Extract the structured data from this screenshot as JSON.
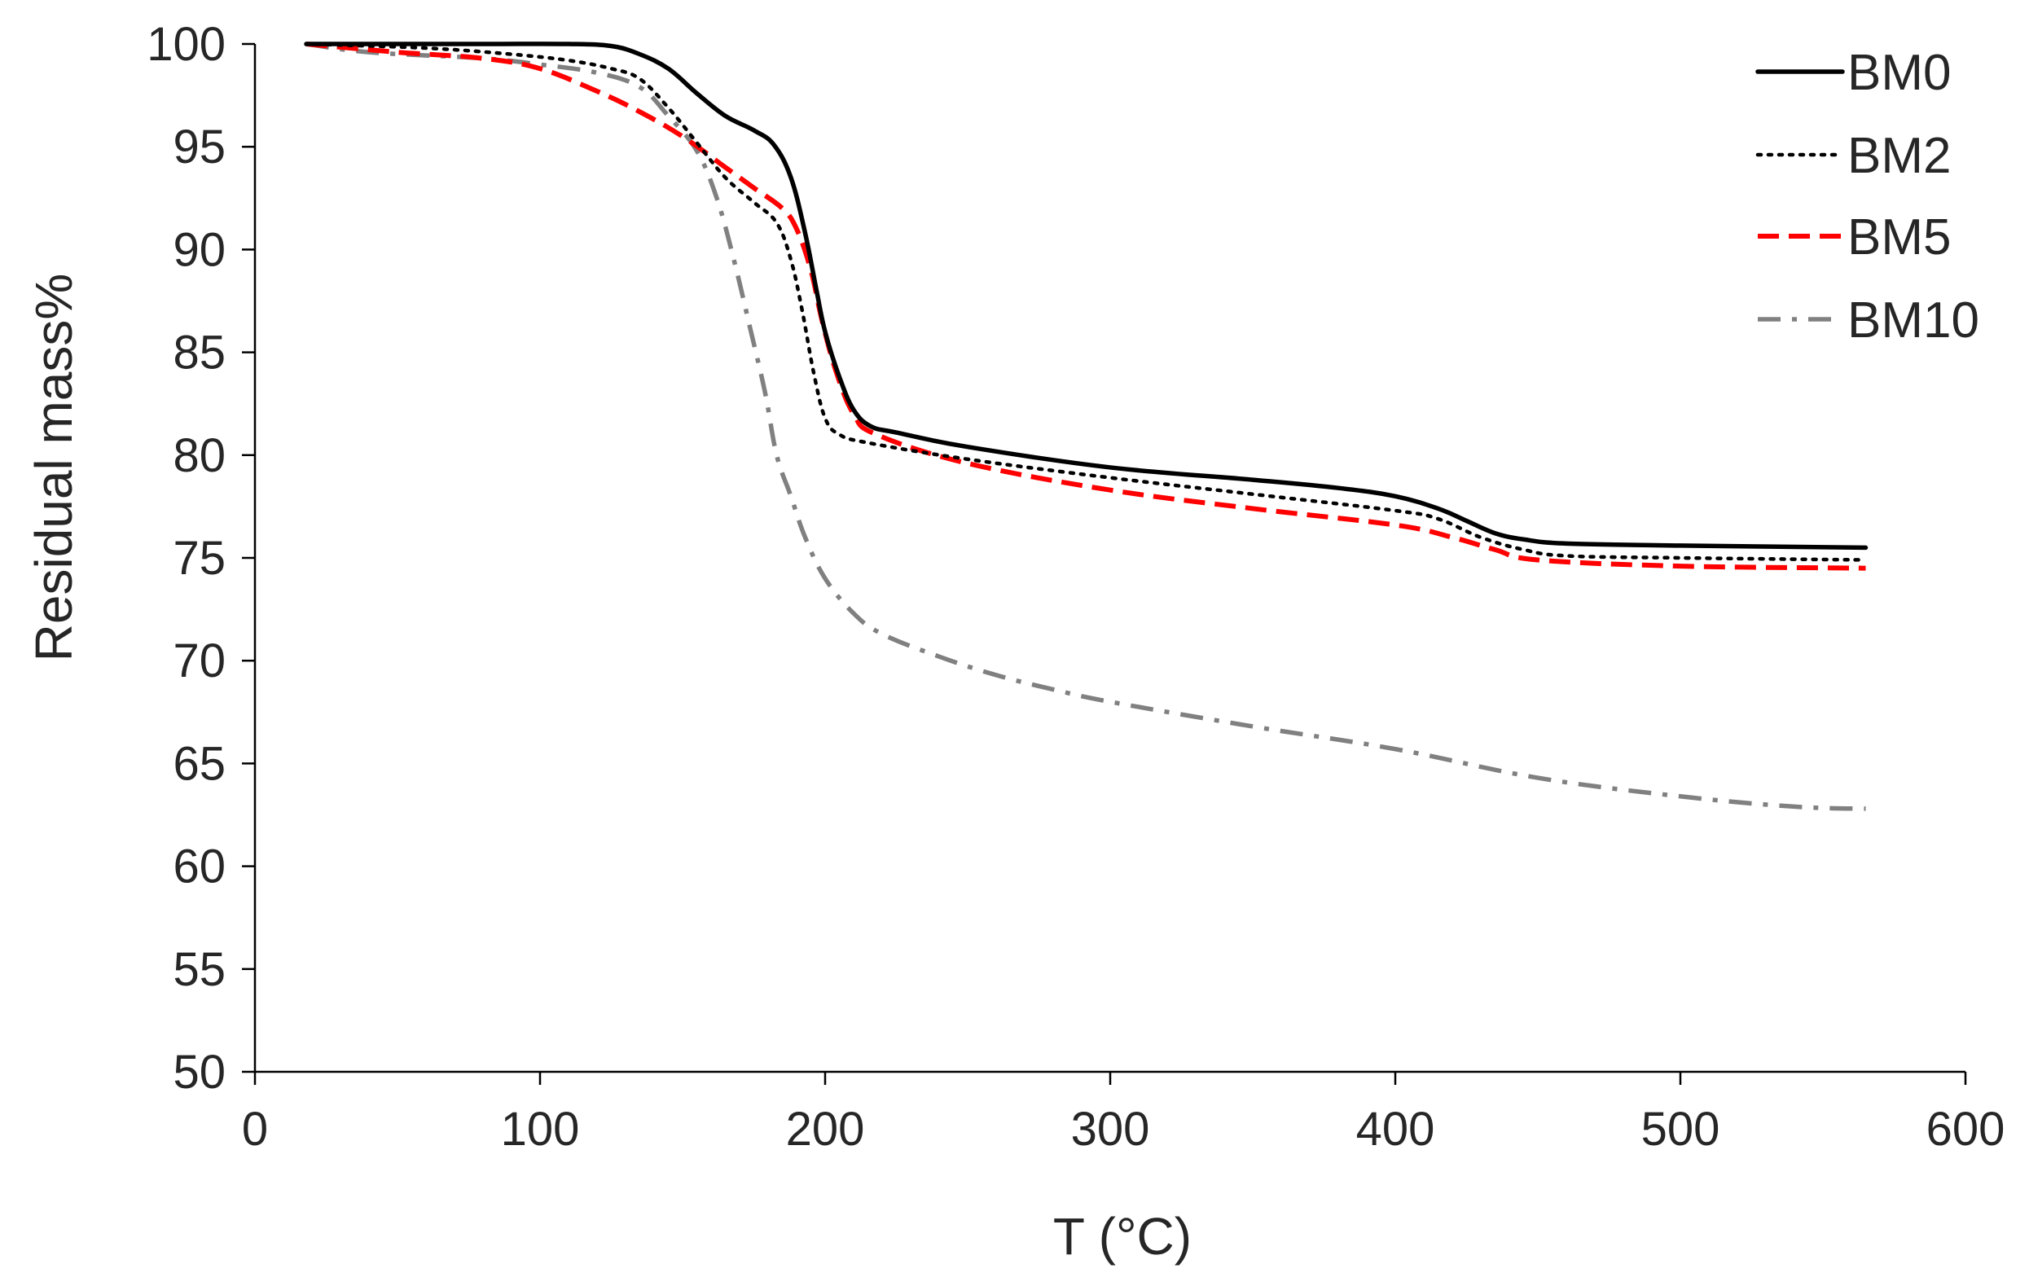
{
  "chart_data": {
    "type": "line",
    "title": "",
    "xlabel": "T (°C)",
    "ylabel": "Residual  mass%",
    "xlim": [
      0,
      600
    ],
    "ylim": [
      50,
      100
    ],
    "x_ticks": [
      0,
      100,
      200,
      300,
      400,
      500,
      600
    ],
    "y_ticks": [
      50,
      55,
      60,
      65,
      70,
      75,
      80,
      85,
      90,
      95,
      100
    ],
    "grid": false,
    "legend_position": "top-right",
    "series": [
      {
        "name": "BM0",
        "color": "#000000",
        "dash": "solid",
        "points": [
          [
            18,
            100
          ],
          [
            40,
            100
          ],
          [
            80,
            100
          ],
          [
            110,
            100
          ],
          [
            125,
            99.9
          ],
          [
            135,
            99.5
          ],
          [
            145,
            98.8
          ],
          [
            155,
            97.6
          ],
          [
            165,
            96.5
          ],
          [
            175,
            95.8
          ],
          [
            182,
            95.1
          ],
          [
            188,
            93.5
          ],
          [
            193,
            90.8
          ],
          [
            197,
            88
          ],
          [
            200,
            86
          ],
          [
            205,
            83.8
          ],
          [
            210,
            82.2
          ],
          [
            216,
            81.4
          ],
          [
            225,
            81.1
          ],
          [
            250,
            80.4
          ],
          [
            300,
            79.4
          ],
          [
            350,
            78.8
          ],
          [
            380,
            78.4
          ],
          [
            400,
            78
          ],
          [
            415,
            77.4
          ],
          [
            425,
            76.8
          ],
          [
            435,
            76.2
          ],
          [
            445,
            75.9
          ],
          [
            460,
            75.7
          ],
          [
            500,
            75.6
          ],
          [
            565,
            75.5
          ]
        ]
      },
      {
        "name": "BM2",
        "color": "#000000",
        "dash": "dotted",
        "points": [
          [
            18,
            100
          ],
          [
            60,
            99.8
          ],
          [
            90,
            99.5
          ],
          [
            110,
            99.2
          ],
          [
            125,
            98.8
          ],
          [
            135,
            98.3
          ],
          [
            145,
            96.9
          ],
          [
            155,
            95.2
          ],
          [
            165,
            93.5
          ],
          [
            175,
            92.3
          ],
          [
            183,
            91.3
          ],
          [
            188,
            89.5
          ],
          [
            192,
            87
          ],
          [
            196,
            84
          ],
          [
            200,
            81.8
          ],
          [
            205,
            81
          ],
          [
            215,
            80.6
          ],
          [
            250,
            79.8
          ],
          [
            300,
            78.9
          ],
          [
            350,
            78.1
          ],
          [
            400,
            77.3
          ],
          [
            415,
            76.9
          ],
          [
            430,
            76
          ],
          [
            445,
            75.4
          ],
          [
            460,
            75.1
          ],
          [
            500,
            75
          ],
          [
            565,
            74.9
          ]
        ]
      },
      {
        "name": "BM5",
        "color": "#ff0000",
        "dash": "dashed",
        "points": [
          [
            18,
            100
          ],
          [
            50,
            99.6
          ],
          [
            80,
            99.3
          ],
          [
            100,
            98.8
          ],
          [
            120,
            97.7
          ],
          [
            135,
            96.7
          ],
          [
            150,
            95.5
          ],
          [
            165,
            94
          ],
          [
            175,
            93
          ],
          [
            185,
            92
          ],
          [
            190,
            91
          ],
          [
            195,
            89
          ],
          [
            199,
            86.5
          ],
          [
            204,
            84
          ],
          [
            210,
            82
          ],
          [
            218,
            81
          ],
          [
            250,
            79.6
          ],
          [
            300,
            78.3
          ],
          [
            350,
            77.4
          ],
          [
            400,
            76.6
          ],
          [
            420,
            76
          ],
          [
            435,
            75.4
          ],
          [
            450,
            74.9
          ],
          [
            500,
            74.6
          ],
          [
            565,
            74.5
          ]
        ]
      },
      {
        "name": "BM10",
        "color": "#808080",
        "dash": "dashdot",
        "points": [
          [
            18,
            100
          ],
          [
            40,
            99.6
          ],
          [
            80,
            99.3
          ],
          [
            100,
            99
          ],
          [
            120,
            98.6
          ],
          [
            135,
            97.9
          ],
          [
            145,
            96.5
          ],
          [
            155,
            94.8
          ],
          [
            162,
            92.5
          ],
          [
            168,
            89.5
          ],
          [
            174,
            86
          ],
          [
            179,
            83
          ],
          [
            183,
            80
          ],
          [
            188,
            78
          ],
          [
            193,
            76
          ],
          [
            200,
            74
          ],
          [
            210,
            72.3
          ],
          [
            220,
            71.3
          ],
          [
            240,
            70.2
          ],
          [
            260,
            69.3
          ],
          [
            280,
            68.6
          ],
          [
            300,
            68
          ],
          [
            350,
            66.8
          ],
          [
            400,
            65.7
          ],
          [
            450,
            64.3
          ],
          [
            500,
            63.4
          ],
          [
            540,
            62.9
          ],
          [
            565,
            62.8
          ]
        ]
      }
    ]
  }
}
